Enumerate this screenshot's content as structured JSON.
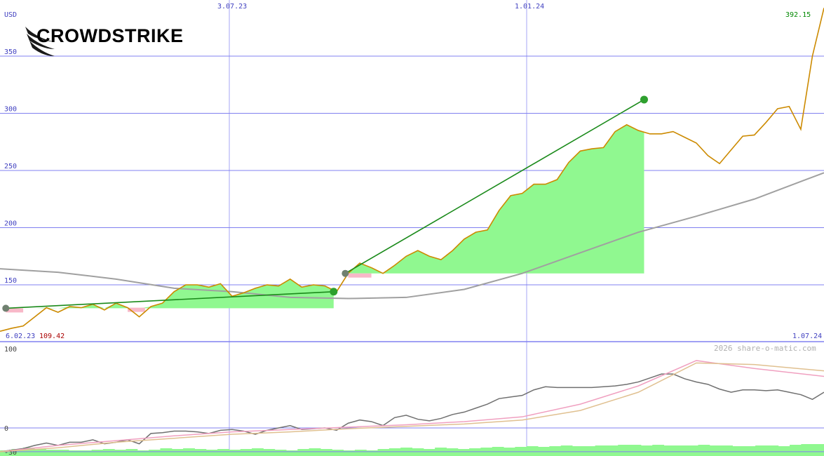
{
  "logo": {
    "text": "CROWDSTRIKE"
  },
  "copyright": "2026 share-o-matic.com",
  "labels": {
    "currency": "USD",
    "first_price": "109.42",
    "last_price": "392.15",
    "start_date": "6.02.23",
    "end_date": "1.07.24"
  },
  "colors": {
    "price_line": "#cc8a00",
    "trend_line": "#1a8a1a",
    "fill_green": "#90f890",
    "fill_pink": "#f8b8c8",
    "ma_gray": "#a0a0a0",
    "grid": "#8080f0",
    "axis_label": "#4040c0",
    "first_price_color": "#aa0000",
    "last_price_color": "#008800",
    "osc_dark": "#707070",
    "osc_pink": "#f0a0c0",
    "osc_tan": "#e0c090"
  },
  "chart_data": [
    {
      "type": "line",
      "panel": "price",
      "ylim": [
        102,
        392.15
      ],
      "yticks": [
        150,
        200,
        250,
        300,
        350
      ],
      "xticks": [
        "3.07.23",
        "1.01.24"
      ],
      "grid": true,
      "series": [
        {
          "role": "price",
          "x": [
            0,
            2,
            4,
            6,
            8,
            10,
            12,
            14,
            16,
            18,
            20,
            22,
            24,
            26,
            28,
            30,
            32,
            34,
            36,
            38,
            40,
            42,
            44,
            46,
            48,
            50,
            52,
            54,
            56,
            58,
            60,
            62,
            64,
            66,
            68,
            70,
            72,
            74,
            76,
            78,
            80,
            82,
            84,
            86,
            88,
            90,
            92,
            94,
            96,
            98,
            100,
            102,
            104,
            106,
            108,
            110,
            112,
            114,
            116,
            118,
            120,
            122,
            124,
            126,
            128,
            130,
            132,
            134,
            136,
            138,
            140,
            142
          ],
          "values": [
            109.4,
            112,
            114,
            122,
            130,
            126,
            131,
            130,
            133,
            128,
            134,
            130,
            122,
            131,
            134,
            144,
            150,
            150,
            148,
            151,
            140,
            143,
            147,
            150,
            149,
            155,
            148,
            150,
            149,
            144,
            160,
            169,
            165,
            160,
            167,
            175,
            180,
            175,
            172,
            180,
            190,
            196,
            198,
            215,
            228,
            230,
            238,
            238,
            242,
            257,
            267,
            269,
            270,
            284,
            290,
            285,
            282,
            282,
            284,
            279,
            274,
            263,
            256,
            268,
            280,
            281,
            292,
            304,
            306,
            286,
            350,
            392.15
          ]
        },
        {
          "role": "moving-average",
          "x": [
            0,
            10,
            20,
            30,
            40,
            50,
            60,
            70,
            80,
            90,
            100,
            110,
            120,
            130,
            142
          ],
          "values": [
            164,
            161,
            155,
            147,
            144,
            139,
            138,
            139,
            146,
            160,
            178,
            196,
            210,
            225,
            248
          ]
        }
      ],
      "trends": [
        {
          "x": [
            1,
            57.5
          ],
          "values": [
            129.5,
            144
          ]
        },
        {
          "x": [
            59.5,
            111
          ],
          "values": [
            160,
            312
          ]
        }
      ]
    },
    {
      "type": "line",
      "panel": "oscillator",
      "ylim": [
        -30,
        100
      ],
      "yticks": [
        100,
        0,
        -30
      ],
      "series": [
        {
          "role": "oscillator",
          "values": [
            -30,
            -28,
            -26,
            -22,
            -19,
            -22,
            -18,
            -18,
            -15,
            -20,
            -18,
            -15,
            -20,
            -7,
            -6,
            -4,
            -4,
            -5,
            -7,
            -3,
            -2,
            -4,
            -8,
            -3,
            0,
            3,
            -2,
            -1,
            0,
            -3,
            6,
            10,
            8,
            3,
            13,
            16,
            11,
            9,
            12,
            17,
            20,
            25,
            30,
            37,
            39,
            41,
            48,
            52,
            51,
            51,
            51,
            51,
            52,
            53,
            55,
            58,
            63,
            68,
            68,
            62,
            58,
            55,
            49,
            45,
            48,
            48,
            47,
            48,
            45,
            42,
            36,
            45
          ]
        },
        {
          "role": "signal-pink",
          "x": [
            0,
            10,
            20,
            30,
            40,
            50,
            60,
            70,
            80,
            90,
            100,
            110,
            120,
            130,
            142
          ],
          "values": [
            -30,
            -22,
            -16,
            -10,
            -5,
            -2,
            1,
            4,
            8,
            14,
            30,
            53,
            85,
            75,
            65
          ]
        },
        {
          "role": "signal-tan",
          "x": [
            0,
            10,
            20,
            30,
            40,
            50,
            60,
            70,
            80,
            90,
            100,
            110,
            120,
            130,
            142
          ],
          "values": [
            -30,
            -25,
            -18,
            -13,
            -8,
            -5,
            -1,
            2,
            5,
            10,
            22,
            45,
            82,
            80,
            72
          ]
        }
      ],
      "volume": [
        8,
        10,
        12,
        10,
        9,
        9,
        8,
        8,
        9,
        10,
        9,
        10,
        8,
        9,
        11,
        10,
        11,
        10,
        9,
        10,
        9,
        10,
        11,
        10,
        9,
        8,
        10,
        11,
        10,
        9,
        8,
        9,
        8,
        10,
        11,
        12,
        11,
        10,
        12,
        11,
        10,
        11,
        12,
        13,
        12,
        13,
        14,
        13,
        14,
        15,
        14,
        14,
        15,
        15,
        16,
        16,
        15,
        16,
        15,
        15,
        15,
        16,
        15,
        15,
        14,
        14,
        15,
        15,
        14,
        16,
        17,
        17
      ]
    }
  ]
}
